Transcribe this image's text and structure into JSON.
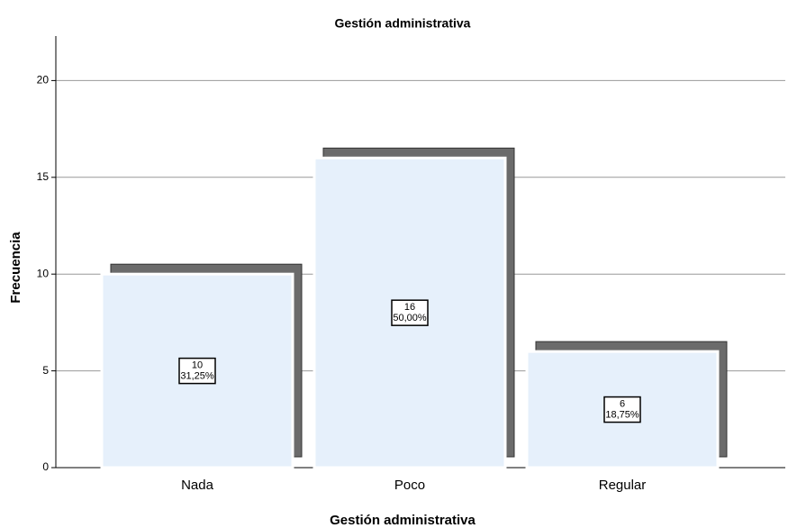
{
  "chart_data": {
    "type": "bar",
    "title": "Gestión administrativa",
    "x_label": "Gestión administrativa",
    "y_label": "Frecuencia",
    "categories": [
      "Nada",
      "Poco",
      "Regular"
    ],
    "values": [
      10,
      16,
      6
    ],
    "percentages": [
      31.25,
      50,
      18.75
    ],
    "percentage_labels": [
      "31,25%",
      "50,00%",
      "18,75%"
    ],
    "color": "#e6f0fb",
    "shadow_color": "#6b6b6b",
    "ylim": [
      0,
      22.3
    ],
    "yticks": [
      0,
      5,
      10,
      15,
      20
    ],
    "grid": true
  }
}
